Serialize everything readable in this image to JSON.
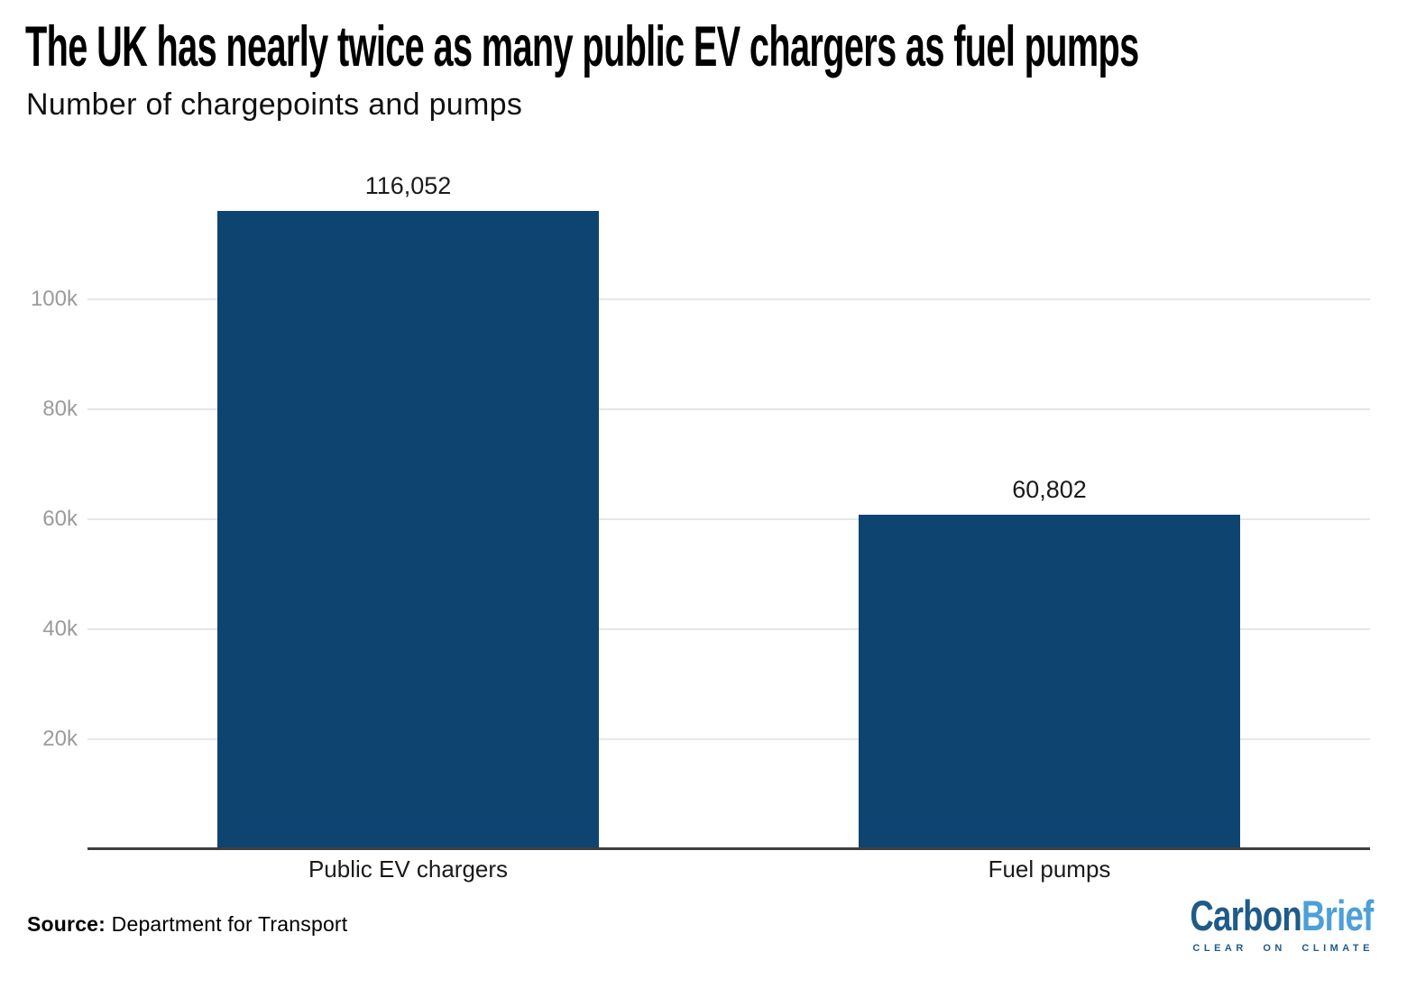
{
  "header": {
    "title": "The UK has nearly twice as many public EV chargers as fuel pumps",
    "subtitle": "Number of chargepoints and pumps"
  },
  "chart_data": {
    "type": "bar",
    "title": "The UK has nearly twice as many public EV chargers as fuel pumps",
    "subtitle": "Number of chargepoints and pumps",
    "categories": [
      "Public EV chargers",
      "Fuel pumps"
    ],
    "values": [
      116052,
      60802
    ],
    "value_labels": [
      "116,052",
      "60,802"
    ],
    "xlabel": "",
    "ylabel": "",
    "ylim": [
      0,
      120000
    ],
    "yticks": [
      20000,
      40000,
      60000,
      80000,
      100000
    ],
    "ytick_labels": [
      "20k",
      "40k",
      "60k",
      "80k",
      "100k"
    ],
    "grid": "horizontal",
    "legend": "none",
    "bar_color": "#0e4470"
  },
  "footer": {
    "source_label": "Source:",
    "source_text": " Department for Transport"
  },
  "logo": {
    "part1": "Carbon",
    "part2": "Brief",
    "tagline": "CLEAR ON CLIMATE",
    "part1_color": "#1f5b88",
    "part2_color": "#4d9fd8"
  },
  "colors": {
    "bar": "#0e4470",
    "axis": "#3f3f3f",
    "gridline": "#e6e6e6",
    "tick_label": "#9b9b9b",
    "text": "#1a1a1a",
    "background": "#ffffff"
  }
}
